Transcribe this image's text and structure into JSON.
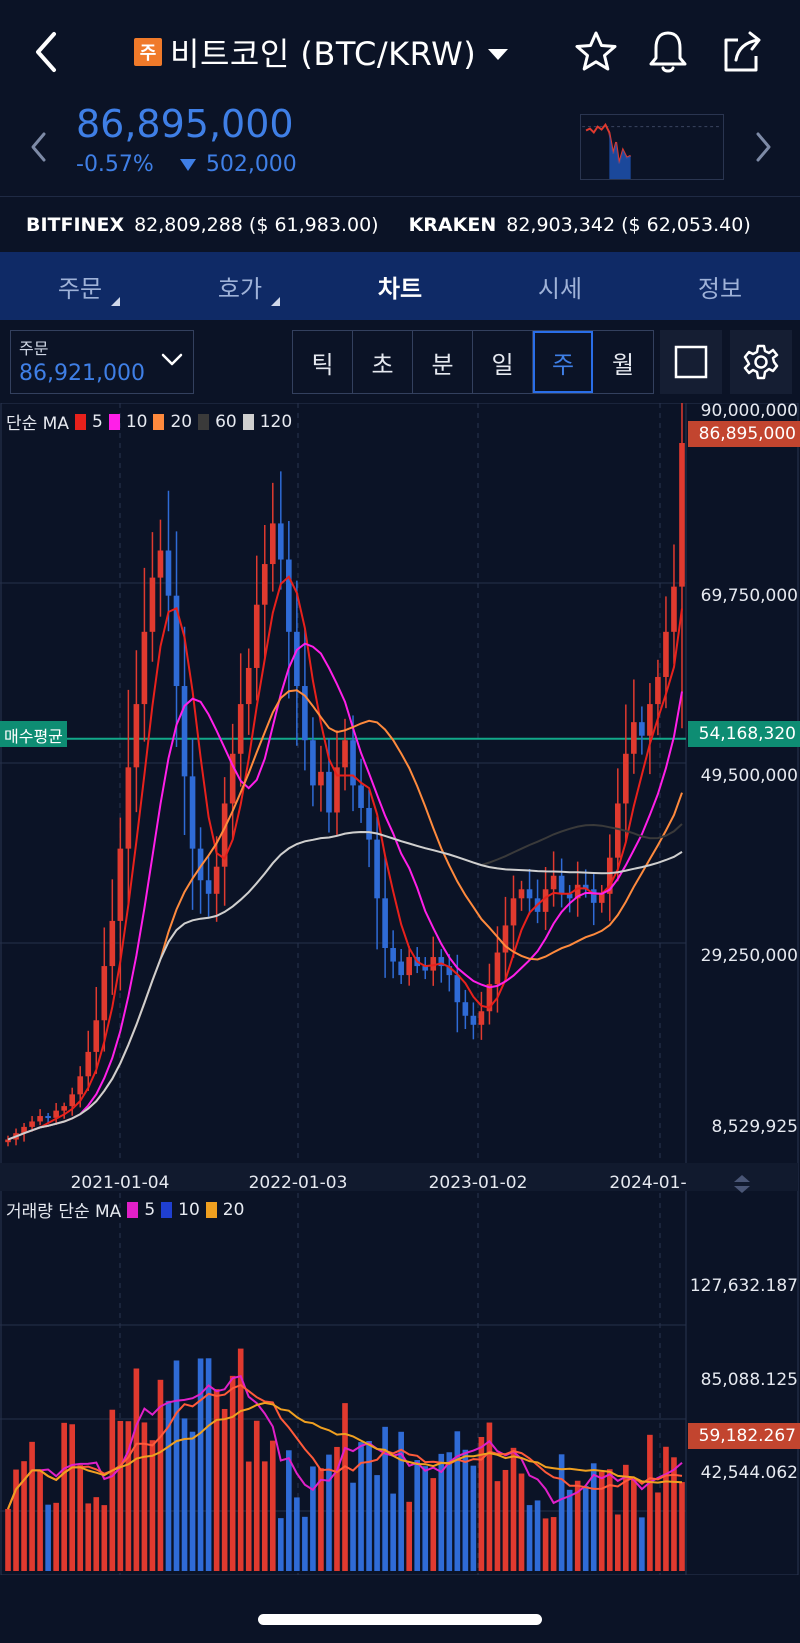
{
  "header": {
    "badge": "주",
    "title": "비트코인 (BTC/KRW)"
  },
  "price": {
    "current": "86,895,000",
    "change_pct": "-0.57%",
    "change_abs": "502,000"
  },
  "exchanges": [
    {
      "name": "BITFINEX",
      "value": "82,809,288 ($ 61,983.00)"
    },
    {
      "name": "KRAKEN",
      "value": "82,903,342 ($ 62,053.40)"
    }
  ],
  "tabs": [
    "주문",
    "호가",
    "차트",
    "시세",
    "정보"
  ],
  "active_tab": "차트",
  "order": {
    "label": "주문",
    "value": "86,921,000"
  },
  "periods": [
    "틱",
    "초",
    "분",
    "일",
    "주",
    "월"
  ],
  "selected_period": "주",
  "colors": {
    "up": "#e03a2f",
    "down": "#2f6bd6",
    "accent_blue": "#3f7fe6",
    "avg_line": "#0e8d73",
    "tab_bg": "#0f2a66",
    "bg": "#0b1326"
  },
  "price_legend": {
    "prefix": "단순 MA",
    "items": [
      {
        "label": "5",
        "color": "#e8211c"
      },
      {
        "label": "10",
        "color": "#ff1fe8"
      },
      {
        "label": "20",
        "color": "#ff8a3d"
      },
      {
        "label": "60",
        "color": "#3a3a3a"
      },
      {
        "label": "120",
        "color": "#cfcfcf"
      }
    ]
  },
  "volume_legend": {
    "prefix": "거래량 단순 MA",
    "items": [
      {
        "label": "5",
        "color": "#e020c8"
      },
      {
        "label": "10",
        "color": "#1f3fd0"
      },
      {
        "label": "20",
        "color": "#f0a020"
      }
    ]
  },
  "price_axis": [
    "90,000,000",
    "69,750,000",
    "49,500,000",
    "29,250,000",
    "8,529,925"
  ],
  "price_tags": {
    "last": "86,895,000",
    "avg": "54,168,320",
    "avg_label": "매수평균"
  },
  "x_axis": [
    "2021-01-04",
    "2022-01-03",
    "2023-01-02",
    "2024-01-"
  ],
  "volume_axis": [
    "127,632.187",
    "85,088.125",
    "42,544.062"
  ],
  "volume_tag": "59,182.267",
  "chart_data": {
    "type": "candlestick",
    "x_unit": "week",
    "ylim": [
      8529925,
      90000000
    ],
    "avg_buy_price": 54168320,
    "close_series": [
      9.8,
      10.5,
      11.2,
      11.8,
      12.4,
      12.2,
      13.0,
      13.5,
      14.8,
      16.8,
      19.5,
      23.0,
      29.0,
      34.0,
      42.0,
      51.0,
      58.0,
      66.0,
      72.0,
      75.0,
      70.0,
      60.0,
      50.0,
      42.0,
      38.5,
      37.0,
      40.0,
      47.0,
      52.5,
      58.0,
      62.0,
      69.0,
      73.5,
      78.0,
      74.0,
      66.0,
      60.0,
      54.0,
      49.0,
      50.5,
      46.0,
      51.0,
      54.0,
      49.0,
      46.5,
      43.0,
      36.5,
      31.0,
      29.5,
      28.0,
      30.0,
      29.0,
      28.5,
      30.0,
      29.0,
      28.0,
      25.0,
      23.5,
      22.5,
      24.0,
      27.0,
      30.5,
      33.5,
      36.5,
      37.5,
      36.5,
      35.0,
      37.5,
      39.0,
      37.0,
      36.5,
      38.0,
      37.5,
      36.0,
      37.0,
      41.0,
      47.0,
      52.5,
      56.0,
      54.5,
      58.0,
      61.0,
      66.0,
      71.0,
      86.9
    ],
    "ma_periods": [
      5,
      10,
      20,
      60,
      120
    ],
    "volume_ylim": [
      0,
      150000
    ],
    "volume_last": 59182.267
  }
}
